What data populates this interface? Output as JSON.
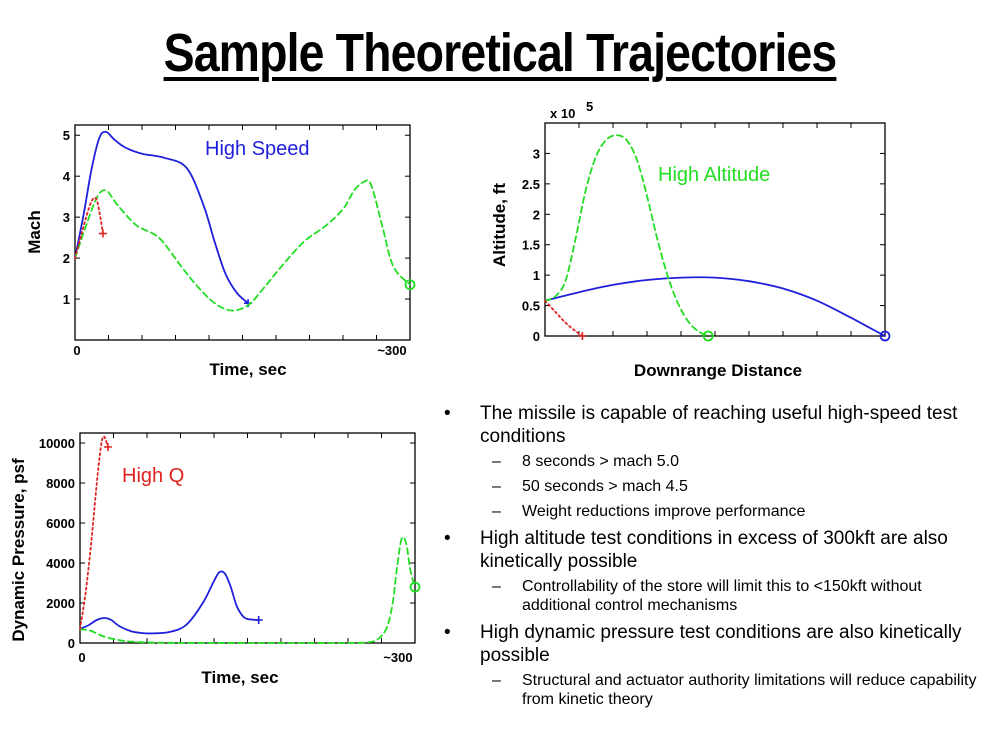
{
  "title": "Sample Theoretical Trajectories",
  "colors": {
    "blue": "#1f1fdc",
    "green": "#22dd22",
    "red": "#e0221e"
  },
  "chart_data": [
    {
      "id": "mach",
      "type": "line",
      "xlabel": "Time, sec",
      "ylabel": "Mach",
      "x_tick_labels": [
        "0",
        "~300"
      ],
      "y_ticks": [
        1,
        2,
        3,
        4,
        5
      ],
      "xlim": [
        0,
        300
      ],
      "ylim": [
        0,
        5.25
      ],
      "annotation": "High Speed",
      "series": [
        {
          "name": "High Speed",
          "style": "solid",
          "color": "#1f1fdc",
          "end_marker": "+",
          "x": [
            0,
            8,
            15,
            22,
            28,
            35,
            45,
            60,
            80,
            100,
            115,
            125,
            135,
            145,
            155
          ],
          "y": [
            2.0,
            3.1,
            4.2,
            4.95,
            5.08,
            4.9,
            4.7,
            4.55,
            4.45,
            4.2,
            3.3,
            2.4,
            1.6,
            1.15,
            0.9
          ]
        },
        {
          "name": "High Altitude",
          "style": "dashed",
          "color": "#22dd22",
          "end_marker": "o",
          "x": [
            0,
            10,
            20,
            28,
            38,
            55,
            75,
            95,
            110,
            125,
            140,
            155,
            170,
            185,
            205,
            225,
            240,
            250,
            258,
            265,
            275,
            285,
            300
          ],
          "y": [
            2.0,
            2.8,
            3.5,
            3.65,
            3.3,
            2.8,
            2.5,
            1.8,
            1.3,
            0.9,
            0.72,
            0.85,
            1.3,
            1.8,
            2.4,
            2.8,
            3.2,
            3.65,
            3.85,
            3.8,
            2.8,
            1.8,
            1.35
          ]
        },
        {
          "name": "High Q",
          "style": "dotted",
          "color": "#e0221e",
          "end_marker": "+",
          "x": [
            0,
            5,
            10,
            15,
            19,
            22,
            25
          ],
          "y": [
            2.0,
            2.5,
            3.0,
            3.4,
            3.45,
            3.1,
            2.6
          ]
        }
      ]
    },
    {
      "id": "altitude",
      "type": "line",
      "xlabel": "Downrange Distance",
      "ylabel": "Altitude, ft",
      "y_multiplier": "x 10",
      "y_exponent": "5",
      "y_ticks": [
        0,
        0.5,
        1,
        1.5,
        2,
        2.5,
        3
      ],
      "y_tick_labels": [
        "0",
        "0.5",
        "1",
        "1.5",
        "2",
        "2.5",
        "3"
      ],
      "xlim": [
        0,
        100
      ],
      "ylim": [
        0,
        3.5
      ],
      "annotation": "High Altitude",
      "series": [
        {
          "name": "High Speed",
          "style": "solid",
          "color": "#1f1fdc",
          "end_marker": "o",
          "x": [
            0,
            10,
            20,
            30,
            40,
            50,
            60,
            70,
            80,
            90,
            95,
            100
          ],
          "y": [
            0.58,
            0.72,
            0.84,
            0.92,
            0.96,
            0.96,
            0.9,
            0.78,
            0.58,
            0.3,
            0.15,
            0.0
          ]
        },
        {
          "name": "High Altitude",
          "style": "dashed",
          "color": "#22dd22",
          "end_marker": "o",
          "x": [
            0,
            3,
            6,
            9,
            12,
            15,
            18,
            21,
            24,
            27,
            30,
            33,
            36,
            39,
            42,
            45,
            48
          ],
          "y": [
            0.58,
            0.65,
            0.9,
            1.6,
            2.4,
            2.95,
            3.22,
            3.3,
            3.22,
            2.9,
            2.3,
            1.6,
            1.0,
            0.55,
            0.25,
            0.08,
            0.0
          ]
        },
        {
          "name": "High Q",
          "style": "dotted",
          "color": "#e0221e",
          "end_marker": "+",
          "x": [
            0,
            3,
            6,
            9,
            11
          ],
          "y": [
            0.58,
            0.4,
            0.22,
            0.08,
            0.0
          ]
        }
      ]
    },
    {
      "id": "dynamic-pressure",
      "type": "line",
      "xlabel": "Time, sec",
      "ylabel": "Dynamic Pressure, psf",
      "x_tick_labels": [
        "0",
        "~300"
      ],
      "y_ticks": [
        0,
        2000,
        4000,
        6000,
        8000,
        10000
      ],
      "xlim": [
        0,
        300
      ],
      "ylim": [
        0,
        10500
      ],
      "annotation": "High Q",
      "series": [
        {
          "name": "High Speed",
          "style": "solid",
          "color": "#1f1fdc",
          "end_marker": "+",
          "x": [
            0,
            8,
            15,
            22,
            28,
            35,
            45,
            55,
            65,
            80,
            95,
            110,
            120,
            125,
            130,
            135,
            140,
            145,
            150,
            160
          ],
          "y": [
            700,
            900,
            1150,
            1250,
            1150,
            850,
            600,
            500,
            480,
            550,
            900,
            2000,
            3100,
            3550,
            3450,
            2800,
            1900,
            1400,
            1200,
            1150
          ]
        },
        {
          "name": "High Altitude",
          "style": "dashed",
          "color": "#22dd22",
          "end_marker": "o",
          "x": [
            0,
            10,
            20,
            30,
            40,
            55,
            80,
            120,
            160,
            200,
            240,
            260,
            268,
            275,
            280,
            284,
            288,
            292,
            296,
            300
          ],
          "y": [
            700,
            600,
            350,
            200,
            100,
            40,
            10,
            5,
            0,
            0,
            0,
            50,
            250,
            800,
            2000,
            3800,
            5200,
            5000,
            3600,
            2800
          ]
        },
        {
          "name": "High Q",
          "style": "dotted",
          "color": "#e0221e",
          "end_marker": "+",
          "x": [
            0,
            5,
            10,
            15,
            18,
            20,
            22,
            25
          ],
          "y": [
            700,
            2500,
            5000,
            8000,
            9500,
            10200,
            10300,
            9800
          ]
        }
      ]
    }
  ],
  "bullets": [
    {
      "text": "The missile is capable of reaching useful high-speed test conditions",
      "sub": [
        "8 seconds > mach 5.0",
        "50 seconds > mach 4.5",
        "Weight reductions improve performance"
      ]
    },
    {
      "text": "High altitude test conditions in excess of 300kft are also kinetically possible",
      "sub": [
        "Controllability of the store will limit this to <150kft without additional control mechanisms"
      ]
    },
    {
      "text": "High dynamic pressure test conditions are also kinetically possible",
      "sub": [
        "Structural and actuator authority limitations will reduce capability from kinetic theory"
      ]
    }
  ],
  "bullet_symbol": "•",
  "dash_symbol": "–"
}
